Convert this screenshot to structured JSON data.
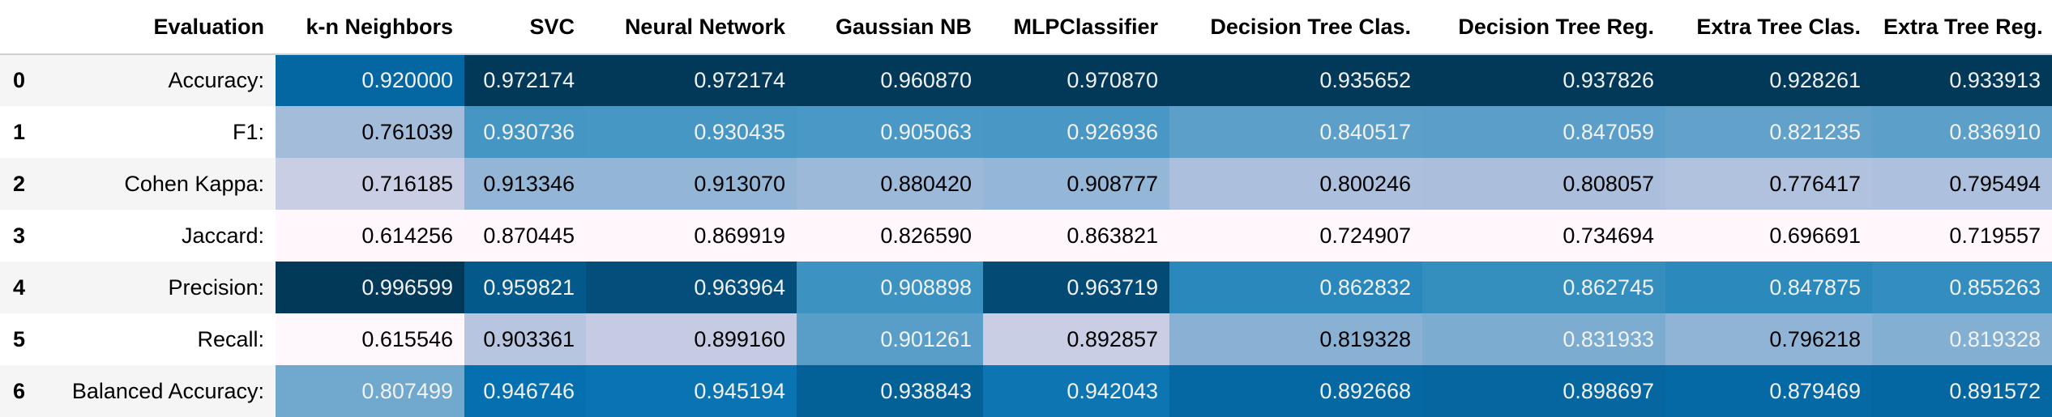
{
  "table": {
    "index_header": "",
    "columns": [
      "Evaluation",
      "k-n Neighbors",
      "SVC",
      "Neural Network",
      "Gaussian NB",
      "MLPClassifier",
      "Decision Tree Clas.",
      "Decision Tree Reg.",
      "Extra Tree Clas.",
      "Extra Tree Reg."
    ],
    "rows": [
      {
        "index": "0",
        "metric": "Accuracy:",
        "values": [
          "0.920000",
          "0.972174",
          "0.972174",
          "0.960870",
          "0.970870",
          "0.935652",
          "0.937826",
          "0.928261",
          "0.933913"
        ]
      },
      {
        "index": "1",
        "metric": "F1:",
        "values": [
          "0.761039",
          "0.930736",
          "0.930435",
          "0.905063",
          "0.926936",
          "0.840517",
          "0.847059",
          "0.821235",
          "0.836910"
        ]
      },
      {
        "index": "2",
        "metric": "Cohen Kappa:",
        "values": [
          "0.716185",
          "0.913346",
          "0.913070",
          "0.880420",
          "0.908777",
          "0.800246",
          "0.808057",
          "0.776417",
          "0.795494"
        ]
      },
      {
        "index": "3",
        "metric": "Jaccard:",
        "values": [
          "0.614256",
          "0.870445",
          "0.869919",
          "0.826590",
          "0.863821",
          "0.724907",
          "0.734694",
          "0.696691",
          "0.719557"
        ]
      },
      {
        "index": "4",
        "metric": "Precision:",
        "values": [
          "0.996599",
          "0.959821",
          "0.963964",
          "0.908898",
          "0.963719",
          "0.862832",
          "0.862745",
          "0.847875",
          "0.855263"
        ]
      },
      {
        "index": "5",
        "metric": "Recall:",
        "values": [
          "0.615546",
          "0.903361",
          "0.899160",
          "0.901261",
          "0.892857",
          "0.819328",
          "0.831933",
          "0.796218",
          "0.819328"
        ]
      },
      {
        "index": "6",
        "metric": "Balanced Accuracy:",
        "values": [
          "0.807499",
          "0.946746",
          "0.945194",
          "0.938843",
          "0.942043",
          "0.892668",
          "0.898697",
          "0.879469",
          "0.891572"
        ]
      }
    ]
  },
  "style": {
    "colormap": "PuBu",
    "gradient_axis": "column",
    "colors": [
      "#fff7fb",
      "#ece7f2",
      "#d0d1e6",
      "#a6bddb",
      "#74a9cf",
      "#3690c0",
      "#0570b0",
      "#045a8d",
      "#023858"
    ]
  }
}
